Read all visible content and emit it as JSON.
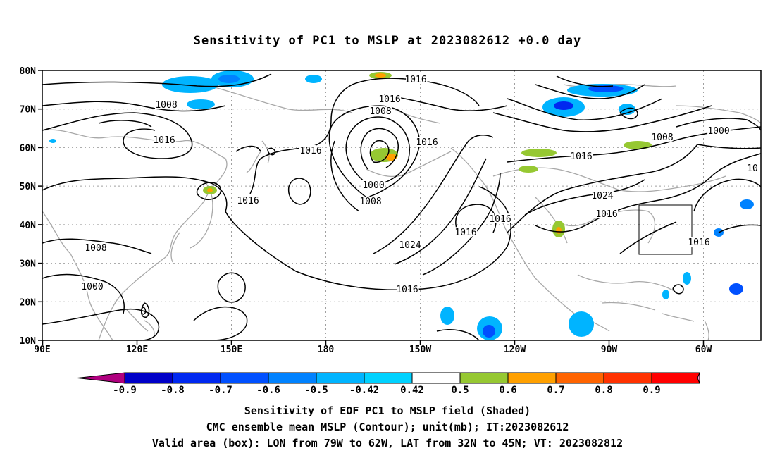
{
  "title": "Sensitivity of PC1 to MSLP at 2023082612 +0.0 day",
  "lat_labels": [
    "80N",
    "70N",
    "60N",
    "50N",
    "40N",
    "30N",
    "20N",
    "10N"
  ],
  "lon_labels": [
    "90E",
    "120E",
    "150E",
    "180",
    "150W",
    "120W",
    "90W",
    "60W"
  ],
  "isobar_labels": [
    {
      "text": "1016",
      "key": "n1016a"
    },
    {
      "text": "1016",
      "key": "n1016b"
    },
    {
      "text": "1008",
      "key": "n1008a"
    },
    {
      "text": "1008",
      "key": "n1008b"
    },
    {
      "text": "1016",
      "key": "w1016"
    },
    {
      "text": "1016",
      "key": "c1016a"
    },
    {
      "text": "1016",
      "key": "c1016b"
    },
    {
      "text": "1016",
      "key": "japan1016"
    },
    {
      "text": "1000",
      "key": "low1000"
    },
    {
      "text": "1008",
      "key": "low1008"
    },
    {
      "text": "1024",
      "key": "high1024"
    },
    {
      "text": "1016",
      "key": "e1016a"
    },
    {
      "text": "1016",
      "key": "e1016b"
    },
    {
      "text": "1016",
      "key": "south1016"
    },
    {
      "text": "1008",
      "key": "asia1008"
    },
    {
      "text": "1000",
      "key": "asia1000"
    },
    {
      "text": "1008",
      "key": "ne1008"
    },
    {
      "text": "1000",
      "key": "ne1000"
    },
    {
      "text": "1016",
      "key": "na1016"
    },
    {
      "text": "1024",
      "key": "na1024"
    },
    {
      "text": "1016",
      "key": "na1016b"
    },
    {
      "text": "1016",
      "key": "box1016"
    },
    {
      "text": "10",
      "key": "edge10"
    }
  ],
  "colorbar": {
    "colors": [
      "#b0007f",
      "#0000c8",
      "#0028f0",
      "#0050ff",
      "#0082ff",
      "#00b4ff",
      "#00d2ff",
      "#ffffff",
      "#96c832",
      "#ffa000",
      "#ff6400",
      "#ff3200",
      "#ff0000",
      "#ff96c8"
    ],
    "labels": [
      "-0.9",
      "-0.8",
      "-0.7",
      "-0.6",
      "-0.5",
      "-0.42",
      "0.42",
      "0.5",
      "0.6",
      "0.7",
      "0.8",
      "0.9"
    ]
  },
  "captions": {
    "line1": "Sensitivity of EOF PC1 to MSLP field (Shaded)",
    "line2": "CMC ensemble mean MSLP (Contour); unit(mb); IT:2023082612",
    "line3": "Valid area (box): LON from 79W to 62W, LAT from 32N to 45N; VT: 2023082812"
  }
}
